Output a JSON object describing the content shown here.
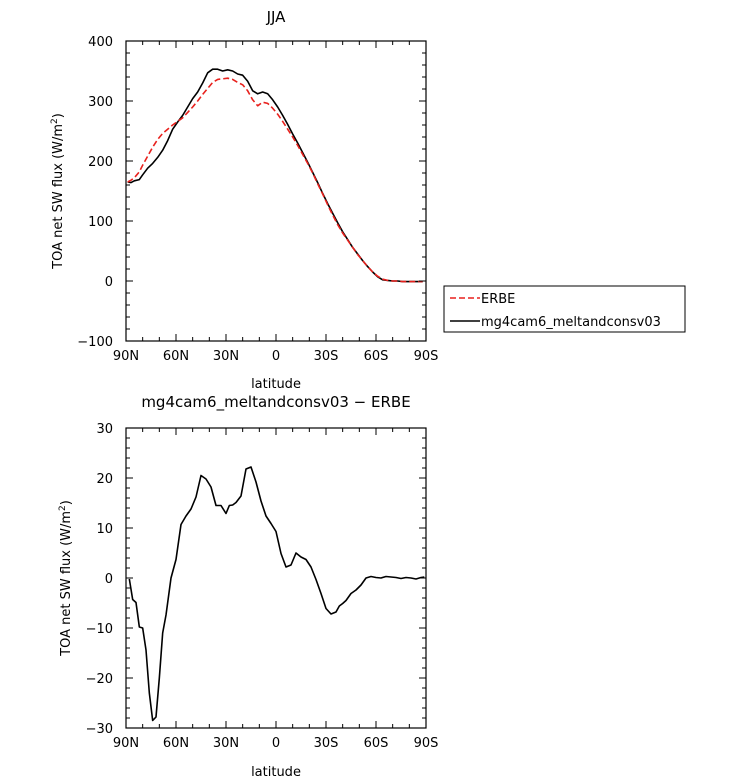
{
  "chart_data": [
    {
      "type": "line",
      "title": "JJA",
      "xlabel": "latitude",
      "ylabel": "TOA net SW flux (W/m²)",
      "xlim": [
        90,
        -90
      ],
      "ylim": [
        -100,
        400
      ],
      "xticks": [
        90,
        60,
        30,
        0,
        -30,
        -60,
        -90
      ],
      "xtick_labels": [
        "90N",
        "60N",
        "30N",
        "0",
        "30S",
        "60S",
        "90S"
      ],
      "yticks": [
        -100,
        0,
        100,
        200,
        300,
        400
      ],
      "ytick_labels": [
        "−100",
        "0",
        "100",
        "200",
        "300",
        "400"
      ],
      "grid": false,
      "legend": {
        "placement": "right-outside",
        "entries": [
          "ERBE",
          "mg4cam6_meltandconsv03"
        ]
      },
      "series": [
        {
          "name": "ERBE",
          "color": "#e8211d",
          "style": "dashed",
          "x": [
            89,
            87,
            85,
            82,
            80,
            77,
            74,
            71,
            68,
            65,
            62,
            59,
            56,
            53,
            50,
            47,
            44,
            41,
            38,
            35,
            32,
            29,
            26,
            23,
            20,
            17,
            14,
            11,
            8,
            5,
            2,
            -1,
            -4,
            -7,
            -10,
            -13,
            -16,
            -19,
            -22,
            -25,
            -28,
            -31,
            -34,
            -37,
            -40,
            -43,
            -46,
            -49,
            -52,
            -55,
            -58,
            -61,
            -64,
            -67,
            -70,
            -73,
            -76,
            -79,
            -82,
            -85,
            -88
          ],
          "y": [
            165,
            168,
            172,
            182,
            193,
            208,
            223,
            236,
            246,
            253,
            260,
            266,
            272,
            281,
            290,
            300,
            311,
            321,
            331,
            336,
            337,
            338,
            336,
            331,
            327,
            317,
            302,
            292,
            298,
            296,
            288,
            278,
            266,
            253,
            240,
            226,
            211,
            196,
            180,
            162,
            145,
            127,
            110,
            94,
            80,
            68,
            56,
            44,
            34,
            24,
            15,
            8,
            3,
            1,
            0,
            0,
            -1,
            -1,
            -1,
            -1,
            -1
          ]
        },
        {
          "name": "mg4cam6_meltandconsv03",
          "color": "#000000",
          "style": "solid",
          "x": [
            89,
            87,
            85,
            82,
            80,
            77,
            74,
            71,
            68,
            65,
            62,
            59,
            56,
            53,
            50,
            47,
            44,
            41,
            38,
            35,
            32,
            29,
            26,
            23,
            20,
            17,
            14,
            11,
            8,
            5,
            2,
            -1,
            -4,
            -7,
            -10,
            -13,
            -16,
            -19,
            -22,
            -25,
            -28,
            -31,
            -34,
            -37,
            -40,
            -43,
            -46,
            -49,
            -52,
            -55,
            -58,
            -61,
            -64,
            -67,
            -70,
            -73,
            -76,
            -79,
            -82,
            -85,
            -88
          ],
          "y": [
            165,
            164,
            167,
            169,
            177,
            188,
            196,
            206,
            218,
            234,
            253,
            265,
            276,
            290,
            304,
            315,
            330,
            347,
            353,
            353,
            350,
            352,
            350,
            345,
            343,
            333,
            317,
            312,
            315,
            312,
            302,
            290,
            276,
            261,
            245,
            230,
            214,
            198,
            181,
            164,
            146,
            129,
            113,
            97,
            82,
            69,
            56,
            45,
            34,
            24,
            15,
            7,
            2,
            1,
            0,
            0,
            -1,
            -1,
            -1,
            -1,
            -1
          ]
        }
      ]
    },
    {
      "type": "line",
      "title": "mg4cam6_meltandconsv03 − ERBE",
      "xlabel": "latitude",
      "ylabel": "TOA net SW flux (W/m²)",
      "xlim": [
        90,
        -90
      ],
      "ylim": [
        -30,
        30
      ],
      "xticks": [
        90,
        60,
        30,
        0,
        -30,
        -60,
        -90
      ],
      "xtick_labels": [
        "90N",
        "60N",
        "30N",
        "0",
        "30S",
        "60S",
        "90S"
      ],
      "yticks": [
        -30,
        -20,
        -10,
        0,
        10,
        20,
        30
      ],
      "ytick_labels": [
        "−30",
        "−20",
        "−10",
        "0",
        "10",
        "20",
        "30"
      ],
      "grid": false,
      "series": [
        {
          "color": "#000000",
          "style": "solid",
          "x": [
            88,
            86,
            84,
            82,
            80,
            78,
            76,
            74,
            72,
            70,
            68,
            66,
            63,
            60,
            57,
            54,
            51,
            48,
            45,
            42,
            39,
            36,
            33,
            30,
            28,
            26,
            24,
            21,
            18,
            15,
            12,
            9,
            6,
            3,
            0,
            -3,
            -6,
            -9,
            -12,
            -15,
            -18,
            -21,
            -24,
            -27,
            -30,
            -33,
            -36,
            -38,
            -40,
            -42,
            -45,
            -48,
            -51,
            -54,
            -57,
            -60,
            -63,
            -66,
            -69,
            -72,
            -75,
            -78,
            -81,
            -84,
            -87,
            -89
          ],
          "y": [
            -0.2,
            -4.3,
            -4.9,
            -9.8,
            -10,
            -14.4,
            -23,
            -28.5,
            -27.8,
            -20,
            -11,
            -7.4,
            0,
            3.7,
            10.7,
            12.4,
            13.8,
            16.2,
            20.5,
            19.8,
            18.2,
            14.5,
            14.5,
            12.9,
            14.5,
            14.6,
            15.1,
            16.4,
            21.8,
            22.2,
            19.2,
            15.4,
            12.4,
            10.9,
            9.3,
            4.9,
            2.2,
            2.6,
            5,
            4.2,
            3.7,
            2.2,
            -0.3,
            -3.1,
            -6.1,
            -7.2,
            -6.8,
            -5.6,
            -5.1,
            -4.5,
            -3.1,
            -2.4,
            -1.4,
            0,
            0.3,
            0.1,
            0,
            0.3,
            0.2,
            0.1,
            -0.1,
            0.1,
            0,
            -0.2,
            0.1,
            0.2
          ]
        }
      ]
    }
  ]
}
